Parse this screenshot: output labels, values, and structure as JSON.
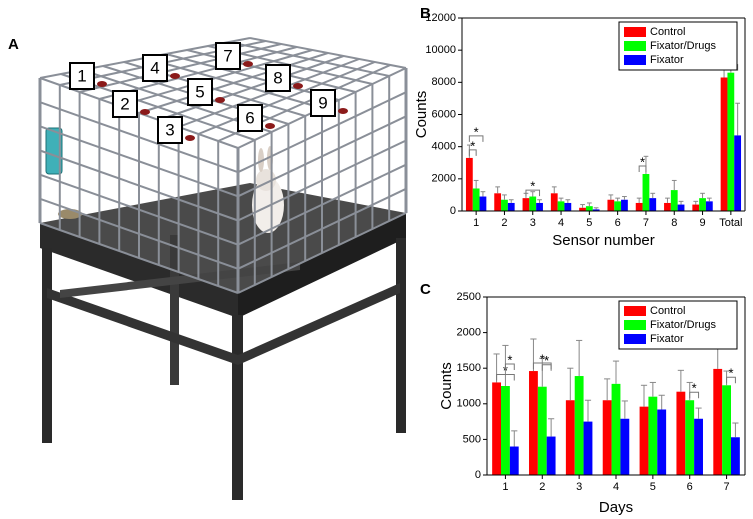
{
  "panels": [
    "A",
    "B",
    "C"
  ],
  "sensors": [
    "1",
    "2",
    "3",
    "4",
    "5",
    "6",
    "7",
    "8",
    "9"
  ],
  "chart_data": [
    {
      "type": "bar",
      "xlabel": "Sensor number",
      "ylabel": "Counts",
      "categories": [
        "1",
        "2",
        "3",
        "4",
        "5",
        "6",
        "7",
        "8",
        "9",
        "Total"
      ],
      "series": [
        {
          "name": "Control",
          "color": "#ff0000",
          "values": [
            3300,
            1100,
            800,
            1100,
            200,
            700,
            500,
            500,
            400,
            8300
          ],
          "errors": [
            800,
            400,
            300,
            400,
            200,
            300,
            300,
            300,
            200,
            3400
          ]
        },
        {
          "name": "Fixator/Drugs",
          "color": "#00ff00",
          "values": [
            1400,
            700,
            900,
            600,
            300,
            600,
            2300,
            1300,
            800,
            8600
          ],
          "errors": [
            500,
            300,
            300,
            200,
            200,
            200,
            1100,
            600,
            300,
            2600
          ]
        },
        {
          "name": "Fixator",
          "color": "#0000ff",
          "values": [
            900,
            500,
            500,
            500,
            100,
            700,
            800,
            400,
            600,
            4700
          ],
          "errors": [
            300,
            200,
            200,
            200,
            100,
            200,
            300,
            200,
            200,
            2000
          ]
        }
      ],
      "ylim": [
        0,
        12000
      ],
      "yticks": [
        0,
        2000,
        4000,
        6000,
        8000,
        10000,
        12000
      ],
      "legend": "upper right",
      "significance": [
        {
          "category": "1",
          "pair": [
            "Control",
            "Fixator/Drugs"
          ],
          "label": "*"
        },
        {
          "category": "1",
          "pair": [
            "Control",
            "Fixator"
          ],
          "label": "*"
        },
        {
          "category": "3",
          "pair": [
            "Control",
            "Fixator"
          ],
          "label": "*"
        },
        {
          "category": "7",
          "pair": [
            "Control",
            "Fixator/Drugs"
          ],
          "label": "*"
        },
        {
          "category": "Total",
          "pair": [
            "Fixator/Drugs",
            "Fixator"
          ],
          "label": "*"
        }
      ]
    },
    {
      "type": "bar",
      "xlabel": "Days",
      "ylabel": "Counts",
      "categories": [
        "1",
        "2",
        "3",
        "4",
        "5",
        "6",
        "7"
      ],
      "series": [
        {
          "name": "Control",
          "color": "#ff0000",
          "values": [
            1300,
            1460,
            1050,
            1050,
            960,
            1170,
            1490
          ],
          "errors": [
            400,
            450,
            450,
            300,
            300,
            300,
            900
          ]
        },
        {
          "name": "Fixator/Drugs",
          "color": "#00ff00",
          "values": [
            1250,
            1240,
            1390,
            1280,
            1100,
            1050,
            1260
          ],
          "errors": [
            570,
            400,
            500,
            320,
            200,
            250,
            200
          ]
        },
        {
          "name": "Fixator",
          "color": "#0000ff",
          "values": [
            400,
            540,
            750,
            790,
            920,
            790,
            530
          ],
          "errors": [
            220,
            250,
            300,
            250,
            200,
            150,
            200
          ]
        }
      ],
      "ylim": [
        0,
        2500
      ],
      "yticks": [
        0,
        500,
        1000,
        1500,
        2000,
        2500
      ],
      "legend": "upper right",
      "significance": [
        {
          "category": "1",
          "pair": [
            "Control",
            "Fixator"
          ],
          "label": "*"
        },
        {
          "category": "1",
          "pair": [
            "Fixator/Drugs",
            "Fixator"
          ],
          "label": "*"
        },
        {
          "category": "2",
          "pair": [
            "Control",
            "Fixator"
          ],
          "label": "*"
        },
        {
          "category": "2",
          "pair": [
            "Fixator/Drugs",
            "Fixator"
          ],
          "label": "*"
        },
        {
          "category": "6",
          "pair": [
            "Fixator/Drugs",
            "Fixator"
          ],
          "label": "*"
        },
        {
          "category": "7",
          "pair": [
            "Fixator/Drugs",
            "Fixator"
          ],
          "label": "*"
        }
      ]
    }
  ]
}
